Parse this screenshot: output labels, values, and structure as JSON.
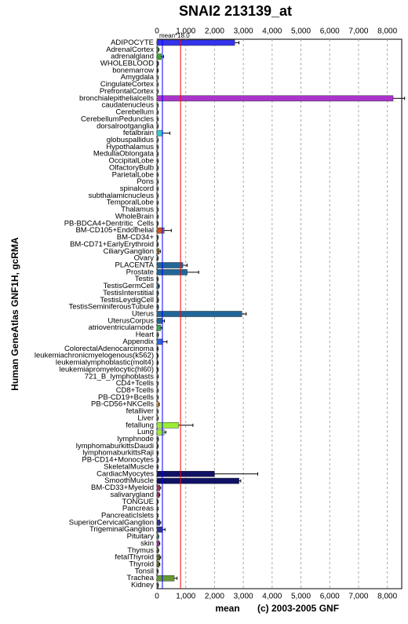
{
  "chart_data": {
    "type": "bar",
    "orientation": "horizontal",
    "title": "SNAI2 213139_at",
    "y_label": "Human GeneAtlas GNF1H, gcRMA",
    "x_label": "mean",
    "credit": "(c) 2003-2005 GNF",
    "categories": [
      "ADIPOCYTE",
      "AdrenalCortex",
      "adrenalgland",
      "WHOLEBLOOD",
      "bonemarrow",
      "Amygdala",
      "CingulateCortex",
      "PrefrontalCortex",
      "bronchialepithelialcells",
      "caudatenucleus",
      "Cerebellum",
      "CerebellumPeduncles",
      "dorsalrootganglia",
      "fetalbrain",
      "globuspallidus",
      "Hypothalamus",
      "MedullaOblongata",
      "OccipitalLobe",
      "OlfactoryBulb",
      "ParietalLobe",
      "Pons",
      "spinalcord",
      "subthalamicnucleus",
      "TemporalLobe",
      "Thalamus",
      "WholeBrain",
      "PB-BDCA4+Dentritic_Cells",
      "BM-CD105+Endothelial",
      "BM-CD34+",
      "BM-CD71+EarlyErythroid",
      "CiliaryGanglion",
      "Ovary",
      "PLACENTA",
      "Prostate",
      "Testis",
      "TestisGermCell",
      "TestisInterstitial",
      "TestisLeydigCell",
      "TestisSeminiferousTubule",
      "Uterus",
      "UterusCorpus",
      "atrioventricularnode",
      "Heart",
      "Appendix",
      "ColorectalAdenocarcinoma",
      "leukemiachronicmyelogenous(k562)",
      "leukemialymphoblastic(molt4)",
      "leukemiapromyelocytic(hl60)",
      "721_B_lymphoblasts",
      "CD4+Tcells",
      "CD8+Tcells",
      "PB-CD19+Bcells",
      "PB-CD56+NKCells",
      "fetalliver",
      "Liver",
      "fetallung",
      "Lung",
      "lymphnode",
      "lymphomaburkittsDaudi",
      "lymphomaburkittsRaji",
      "PB-CD14+Monocytes",
      "SkeletalMuscle",
      "CardiacMyocytes",
      "SmoothMuscle",
      "BM-CD33+Myeloid",
      "salivarygland",
      "TONGUE",
      "Pancreas",
      "PancreaticIslets",
      "SuperiorCervicalGanglion",
      "TrigeminalGanglion",
      "Pituitary",
      "skin",
      "Thymus",
      "fetalThyroid",
      "Thyroid",
      "Tonsil",
      "Trachea",
      "Kidney"
    ],
    "values": [
      2700,
      50,
      150,
      40,
      30,
      30,
      30,
      30,
      8200,
      30,
      30,
      30,
      30,
      200,
      30,
      30,
      30,
      30,
      30,
      30,
      30,
      30,
      30,
      30,
      30,
      30,
      30,
      250,
      30,
      30,
      80,
      30,
      900,
      1050,
      30,
      60,
      40,
      40,
      40,
      2950,
      200,
      130,
      40,
      200,
      30,
      30,
      30,
      30,
      30,
      30,
      30,
      30,
      60,
      30,
      30,
      750,
      250,
      40,
      30,
      30,
      40,
      30,
      2000,
      2850,
      100,
      80,
      30,
      30,
      30,
      100,
      200,
      50,
      80,
      50,
      100,
      80,
      30,
      600,
      40
    ],
    "errors": [
      150,
      20,
      80,
      10,
      10,
      10,
      10,
      10,
      400,
      10,
      10,
      10,
      10,
      250,
      10,
      10,
      10,
      10,
      10,
      10,
      10,
      10,
      10,
      10,
      10,
      10,
      10,
      250,
      10,
      10,
      40,
      10,
      150,
      400,
      10,
      20,
      10,
      10,
      10,
      150,
      60,
      40,
      10,
      150,
      10,
      10,
      10,
      10,
      10,
      10,
      10,
      10,
      20,
      10,
      10,
      500,
      60,
      10,
      10,
      10,
      10,
      10,
      1500,
      60,
      30,
      20,
      10,
      10,
      10,
      30,
      80,
      10,
      20,
      10,
      30,
      20,
      10,
      100,
      10
    ],
    "colors": [
      "#3333ee",
      "#33aa33",
      "#33aa33",
      "#3333aa",
      "#8833aa",
      "#cccc33",
      "#cccc33",
      "#cccc33",
      "#aa33cc",
      "#33cccc",
      "#33cccc",
      "#33cccc",
      "#33cccc",
      "#33cccc",
      "#33cccc",
      "#33cccc",
      "#33cccc",
      "#33cccc",
      "#33cccc",
      "#33cccc",
      "#33cccc",
      "#33cccc",
      "#33cccc",
      "#33cccc",
      "#33cccc",
      "#33cccc",
      "#3366cc",
      "#cc5522",
      "#3366cc",
      "#3366cc",
      "#886633",
      "#3366aa",
      "#226699",
      "#226699",
      "#226699",
      "#226699",
      "#226699",
      "#226699",
      "#226699",
      "#226699",
      "#226699",
      "#33aa55",
      "#33aa55",
      "#3366dd",
      "#5533aa",
      "#5533aa",
      "#5533aa",
      "#5533aa",
      "#ee9933",
      "#ee9933",
      "#ee9933",
      "#ee9933",
      "#ee9933",
      "#ee9933",
      "#ee9933",
      "#99ee33",
      "#99ee33",
      "#5555cc",
      "#883333",
      "#883333",
      "#3366cc",
      "#3366aa",
      "#111166",
      "#111166",
      "#993366",
      "#993366",
      "#993366",
      "#339966",
      "#339966",
      "#333399",
      "#333399",
      "#339999",
      "#993399",
      "#666633",
      "#666633",
      "#666633",
      "#666633",
      "#669933",
      "#666666"
    ],
    "median_line": {
      "value": 190,
      "color": "#0000ff"
    },
    "ref_line": {
      "value": 820,
      "color": "#ff0000",
      "label": "mean*18.0"
    },
    "xlim": [
      0,
      8500
    ],
    "xticks": [
      0,
      {
        "value": 1000,
        "label": "1,000"
      },
      {
        "value": 2000,
        "label": "2,000"
      },
      {
        "value": 3000,
        "label": "3,000"
      },
      {
        "value": 4000,
        "label": "4,000"
      },
      {
        "value": 5000,
        "label": "5,000"
      },
      {
        "value": 6000,
        "label": "6,000"
      },
      {
        "value": 7000,
        "label": "7,000"
      },
      {
        "value": 8000,
        "label": "8,000"
      }
    ],
    "grid": true
  }
}
